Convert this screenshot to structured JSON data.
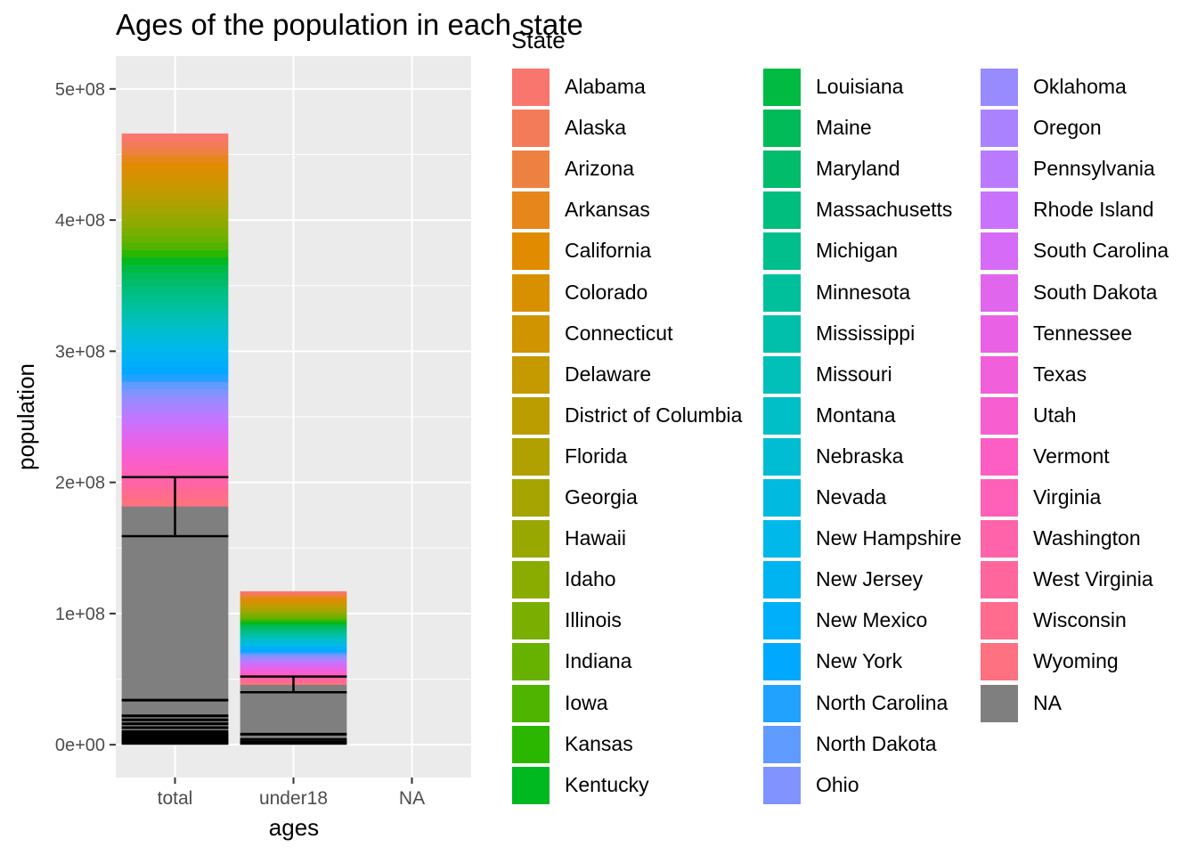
{
  "chart_data": {
    "type": "bar",
    "title": "Ages of the population in each state",
    "xlabel": "ages",
    "ylabel": "population",
    "categories": [
      "total",
      "under18",
      "NA"
    ],
    "ylim": [
      -25000000,
      525000000
    ],
    "yticks": [
      0,
      100000000,
      200000000,
      300000000,
      400000000,
      500000000
    ],
    "ytick_labels": [
      "0e+00",
      "1e+08",
      "2e+08",
      "3e+08",
      "4e+08",
      "5e+08"
    ],
    "stacked": true,
    "totals": [
      466000000,
      117000000,
      null
    ],
    "na_segment": [
      182000000,
      46000000,
      null
    ],
    "error_bars": [
      {
        "category": "total",
        "low": 159000000,
        "high": 204000000
      },
      {
        "category": "under18",
        "low": 40000000,
        "high": 52000000
      }
    ],
    "legend": {
      "title": "State",
      "position": "right",
      "entries": [
        {
          "name": "Alabama",
          "color": "#F8766D"
        },
        {
          "name": "Alaska",
          "color": "#F37B59"
        },
        {
          "name": "Arizona",
          "color": "#ED8141"
        },
        {
          "name": "Arkansas",
          "color": "#E7861B"
        },
        {
          "name": "California",
          "color": "#E08B00"
        },
        {
          "name": "Colorado",
          "color": "#D89000"
        },
        {
          "name": "Connecticut",
          "color": "#CF9400"
        },
        {
          "name": "Delaware",
          "color": "#C59900"
        },
        {
          "name": "District of Columbia",
          "color": "#BB9D00"
        },
        {
          "name": "Florida",
          "color": "#B0A100"
        },
        {
          "name": "Georgia",
          "color": "#A5A400"
        },
        {
          "name": "Hawaii",
          "color": "#98A800"
        },
        {
          "name": "Idaho",
          "color": "#8AAB00"
        },
        {
          "name": "Illinois",
          "color": "#7AAE00"
        },
        {
          "name": "Indiana",
          "color": "#67B100"
        },
        {
          "name": "Iowa",
          "color": "#4FB400"
        },
        {
          "name": "Kansas",
          "color": "#2BB600"
        },
        {
          "name": "Kentucky",
          "color": "#00B81F"
        },
        {
          "name": "Louisiana",
          "color": "#00BA42"
        },
        {
          "name": "Maine",
          "color": "#00BB58"
        },
        {
          "name": "Maryland",
          "color": "#00BC6B"
        },
        {
          "name": "Massachusetts",
          "color": "#00BE7D"
        },
        {
          "name": "Michigan",
          "color": "#00BF8D"
        },
        {
          "name": "Minnesota",
          "color": "#00C09C"
        },
        {
          "name": "Mississippi",
          "color": "#00C0AB"
        },
        {
          "name": "Missouri",
          "color": "#00C0B9"
        },
        {
          "name": "Montana",
          "color": "#00BFC6"
        },
        {
          "name": "Nebraska",
          "color": "#00BDD3"
        },
        {
          "name": "Nevada",
          "color": "#00BBDF"
        },
        {
          "name": "New Hampshire",
          "color": "#00B8E9"
        },
        {
          "name": "New Jersey",
          "color": "#00B4F2"
        },
        {
          "name": "New Mexico",
          "color": "#00AFFA"
        },
        {
          "name": "New York",
          "color": "#00A9FF"
        },
        {
          "name": "North Carolina",
          "color": "#22A2FF"
        },
        {
          "name": "North Dakota",
          "color": "#609BFF"
        },
        {
          "name": "Ohio",
          "color": "#8093FF"
        },
        {
          "name": "Oklahoma",
          "color": "#978BFF"
        },
        {
          "name": "Oregon",
          "color": "#AA82FF"
        },
        {
          "name": "Pennsylvania",
          "color": "#BA7AFF"
        },
        {
          "name": "Rhode Island",
          "color": "#C872FD"
        },
        {
          "name": "South Carolina",
          "color": "#D56BF6"
        },
        {
          "name": "South Dakota",
          "color": "#E066EE"
        },
        {
          "name": "Tennessee",
          "color": "#E962E5"
        },
        {
          "name": "Texas",
          "color": "#F15FDB"
        },
        {
          "name": "Utah",
          "color": "#F75ED0"
        },
        {
          "name": "Vermont",
          "color": "#FC5EC4"
        },
        {
          "name": "Virginia",
          "color": "#FF60B8"
        },
        {
          "name": "Washington",
          "color": "#FF63AA"
        },
        {
          "name": "West Virginia",
          "color": "#FF679C"
        },
        {
          "name": "Wisconsin",
          "color": "#FF6C8E"
        },
        {
          "name": "Wyoming",
          "color": "#FD7180"
        },
        {
          "name": "NA",
          "color": "#7F7F7F"
        }
      ]
    }
  }
}
